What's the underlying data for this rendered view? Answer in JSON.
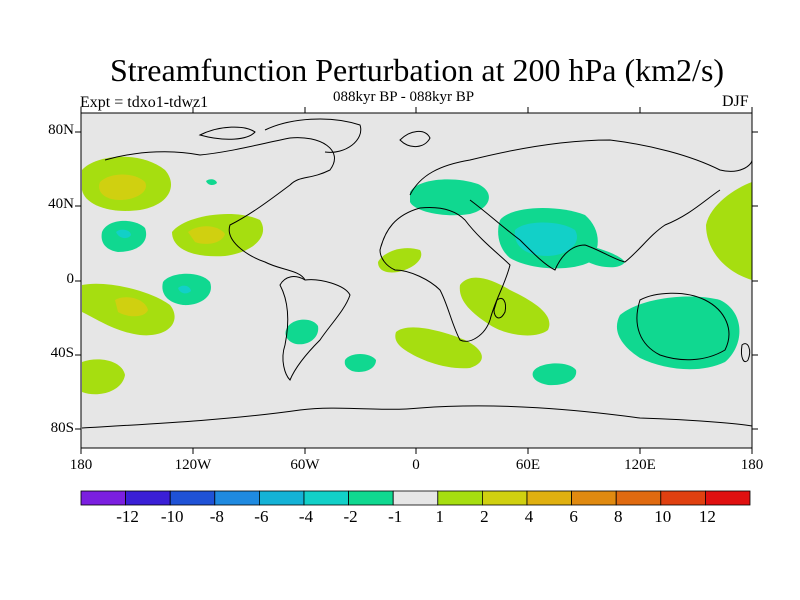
{
  "title": "Streamfunction Perturbation at 200 hPa (km2/s)",
  "experiment": "Expt = tdxo1-tdwz1",
  "subtitle": "088kyr BP - 088kyr BP",
  "season": "DJF",
  "lat_ticks": [
    "80N",
    "40N",
    "0",
    "40S",
    "80S"
  ],
  "lon_ticks": [
    "180",
    "120W",
    "60W",
    "0",
    "60E",
    "120E",
    "180"
  ],
  "colorbar": {
    "colors": [
      "#7b1fe0",
      "#3a1fd6",
      "#1f52d6",
      "#1f8ae0",
      "#14b2d6",
      "#12d0c8",
      "#10d890",
      "#e6e6e6",
      "#a6de10",
      "#d0d010",
      "#e0b010",
      "#e08a10",
      "#e06a10",
      "#e04010",
      "#e01010"
    ],
    "labels": [
      "-12",
      "-10",
      "-8",
      "-6",
      "-4",
      "-2",
      "-1",
      "1",
      "2",
      "4",
      "6",
      "8",
      "10",
      "12"
    ]
  },
  "colors": {
    "background": "#e6e6e6",
    "pos1": "#a6de10",
    "pos2": "#d0d010",
    "pos4": "#e0b010",
    "neg1": "#10d890",
    "neg2": "#12d0c8",
    "neg4": "#14b2d6"
  }
}
